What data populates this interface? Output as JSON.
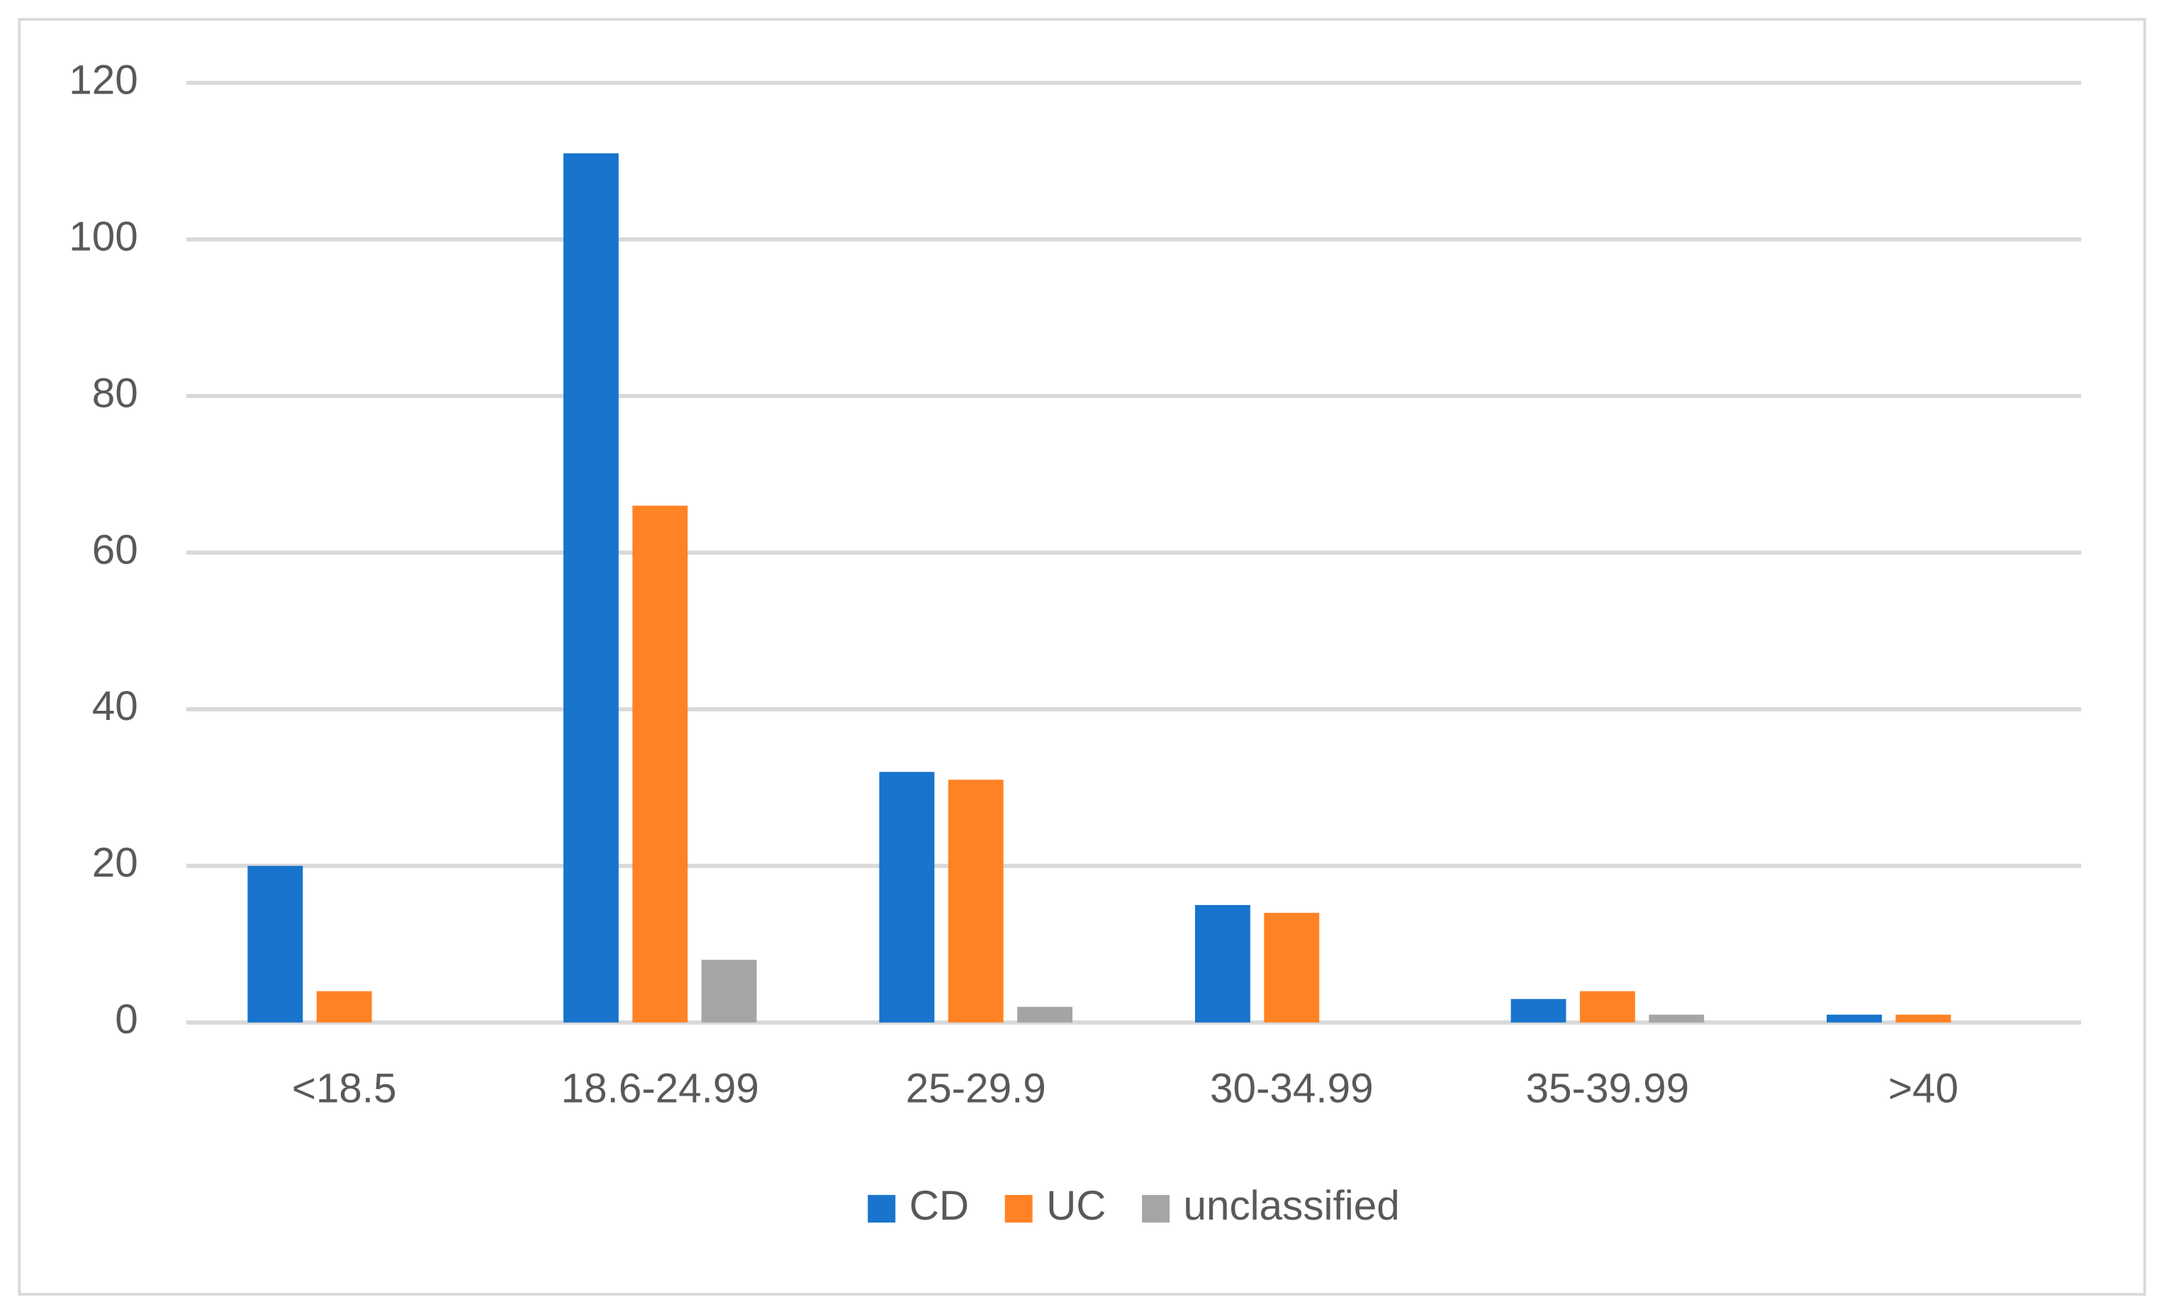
{
  "chart_data": {
    "type": "bar",
    "categories": [
      "<18.5",
      "18.6-24.99",
      "25-29.9",
      "30-34.99",
      "35-39.99",
      ">40"
    ],
    "series": [
      {
        "name": "CD",
        "color": "#1874cd",
        "values": [
          20,
          111,
          32,
          15,
          3,
          1
        ]
      },
      {
        "name": "UC",
        "color": "#ff8225",
        "values": [
          4,
          66,
          31,
          14,
          4,
          1
        ]
      },
      {
        "name": "unclassified",
        "color": "#a5a5a5",
        "values": [
          0,
          8,
          2,
          0,
          1,
          0
        ]
      }
    ],
    "ylim": [
      0,
      120
    ],
    "yticks": [
      0,
      20,
      40,
      60,
      80,
      100,
      120
    ],
    "grid": true,
    "legend": "bottom"
  }
}
